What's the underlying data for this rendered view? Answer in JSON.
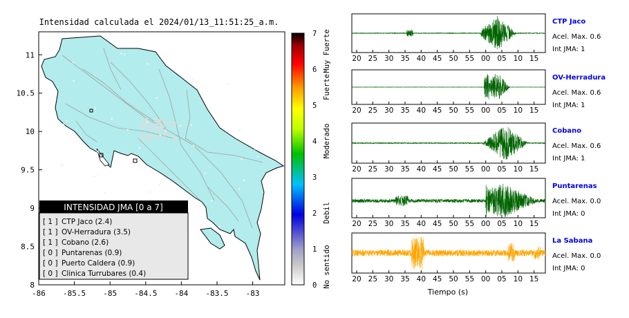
{
  "title": "Intensidad calculada el 2024/01/13_11:51:25_a.m.",
  "map": {
    "lon_ticks": [
      "-86",
      "-85.5",
      "-85",
      "-84.5",
      "-84",
      "-83.5",
      "-83"
    ],
    "lat_ticks": [
      "11",
      "10.5",
      "10",
      "9.5",
      "9",
      "8.5",
      "8"
    ],
    "xlim": [
      -86,
      -82.55
    ],
    "ylim": [
      8,
      11.3
    ]
  },
  "colorbar": {
    "ticks": [
      "0",
      "1",
      "2",
      "3",
      "4",
      "5",
      "6",
      "7"
    ],
    "levels": [
      {
        "label": "No sentido",
        "from": 0,
        "to": 1
      },
      {
        "label": "Debil",
        "from": 1,
        "to": 3
      },
      {
        "label": "Moderado",
        "from": 3,
        "to": 5
      },
      {
        "label": "Fuerte",
        "from": 5,
        "to": 6
      },
      {
        "label": "Muy Fuerte",
        "from": 6,
        "to": 7
      }
    ]
  },
  "legend": {
    "header": "INTENSIDAD JMA [0 a 7]",
    "rows": [
      {
        "jma": "[ 1 ]",
        "station": "CTP Jaco (2.4)"
      },
      {
        "jma": "[ 1 ]",
        "station": "OV-Herradura (3.5)"
      },
      {
        "jma": "[ 1 ]",
        "station": "Cobano (2.6)"
      },
      {
        "jma": "[ 0 ]",
        "station": "Puntarenas (0.9)"
      },
      {
        "jma": "[ 0 ]",
        "station": "Puerto Caldera (0.9)"
      },
      {
        "jma": "[ 0 ]",
        "station": "Clinica Turrubares (0.4)"
      }
    ]
  },
  "waveforms": {
    "time_ticks": [
      "20",
      "25",
      "30",
      "35",
      "40",
      "45",
      "50",
      "55",
      "00",
      "05",
      "10",
      "15"
    ],
    "xlabel": "Tiempo (s)",
    "stations": [
      {
        "name": "CTP Jaco",
        "acel": "Acel. Max. 0.6",
        "jma": "Int JMA: 1",
        "color": "#006400"
      },
      {
        "name": "OV-Herradura",
        "acel": "Acel. Max. 0.6",
        "jma": "Int JMA: 1",
        "color": "#006400"
      },
      {
        "name": "Cobano",
        "acel": "Acel. Max. 0.6",
        "jma": "Int JMA: 1",
        "color": "#006400"
      },
      {
        "name": "Puntarenas",
        "acel": "Acel. Max. 0.0",
        "jma": "Int JMA: 0",
        "color": "#006400"
      },
      {
        "name": "La Sabana",
        "acel": "Acel. Max. 0.0",
        "jma": "Int JMA: 0",
        "color": "#ffa500"
      }
    ]
  },
  "chart_data": [
    {
      "type": "heatmap",
      "title": "Intensidad calculada el 2024/01/13_11:51:25_a.m.",
      "xlim": [
        -86,
        -82.55
      ],
      "ylim": [
        8,
        11.3
      ],
      "colorbar_range": [
        0,
        7
      ],
      "legend_title": "INTENSIDAD JMA [0 a 7]",
      "legend_placement": "bottom-left"
    },
    {
      "type": "line",
      "xlabel": "Tiempo (s)",
      "series": [
        {
          "name": "CTP Jaco",
          "peak_accel": 0.6,
          "jma": 1,
          "active_windows": [
            [
              36,
              37
            ],
            [
              58.5,
              69
            ]
          ]
        },
        {
          "name": "OV-Herradura",
          "peak_accel": 0.6,
          "jma": 1,
          "active_windows": [
            [
              59.5,
              68
            ]
          ]
        },
        {
          "name": "Cobano",
          "peak_accel": 0.6,
          "jma": 1,
          "active_windows": [
            [
              59,
              72
            ]
          ]
        },
        {
          "name": "Puntarenas",
          "peak_accel": 0.0,
          "jma": 0,
          "active_windows": [
            [
              20,
              78
            ]
          ]
        },
        {
          "name": "La Sabana",
          "peak_accel": 0.0,
          "jma": 0,
          "active_windows": [
            [
              20,
              78
            ]
          ]
        }
      ]
    }
  ]
}
